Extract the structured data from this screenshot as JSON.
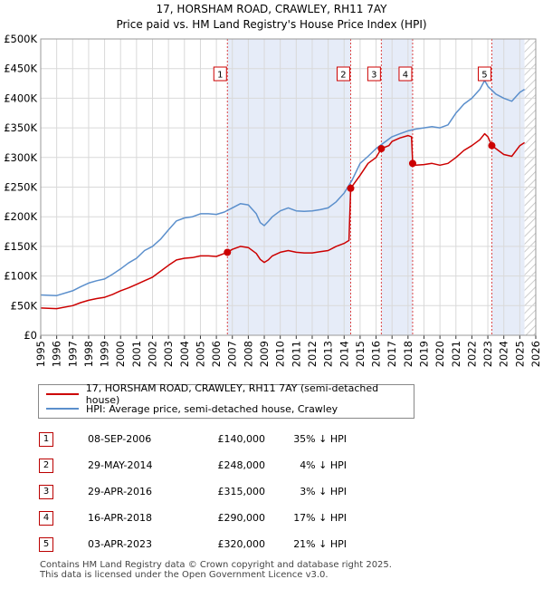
{
  "title_line1": "17, HORSHAM ROAD, CRAWLEY, RH11 7AY",
  "title_line2": "Price paid vs. HM Land Registry's House Price Index (HPI)",
  "legend": {
    "red": "17, HORSHAM ROAD, CRAWLEY, RH11 7AY (semi-detached house)",
    "blue": "HPI: Average price, semi-detached house, Crawley"
  },
  "colors": {
    "red": "#cc0000",
    "blue": "#5b8fcc",
    "shade": "#dde6f5",
    "grid": "#d9d9d9"
  },
  "sales": [
    {
      "num": "1",
      "date": "08-SEP-2006",
      "price": "£140,000",
      "hpi": "35% ↓ HPI"
    },
    {
      "num": "2",
      "date": "29-MAY-2014",
      "price": "£248,000",
      "hpi": "4% ↓ HPI"
    },
    {
      "num": "3",
      "date": "29-APR-2016",
      "price": "£315,000",
      "hpi": "3% ↓ HPI"
    },
    {
      "num": "4",
      "date": "16-APR-2018",
      "price": "£290,000",
      "hpi": "17% ↓ HPI"
    },
    {
      "num": "5",
      "date": "03-APR-2023",
      "price": "£320,000",
      "hpi": "21% ↓ HPI"
    }
  ],
  "footer_line1": "Contains HM Land Registry data © Crown copyright and database right 2025.",
  "footer_line2": "This data is licensed under the Open Government Licence v3.0.",
  "chart_data": {
    "type": "line",
    "xlim": [
      1995,
      2026
    ],
    "ylim": [
      0,
      500000
    ],
    "x_ticks": [
      "1995",
      "1996",
      "1997",
      "1998",
      "1999",
      "2000",
      "2001",
      "2002",
      "2003",
      "2004",
      "2005",
      "2006",
      "2007",
      "2008",
      "2009",
      "2010",
      "2011",
      "2012",
      "2013",
      "2014",
      "2015",
      "2016",
      "2017",
      "2018",
      "2019",
      "2020",
      "2021",
      "2022",
      "2023",
      "2024",
      "2025",
      "2026"
    ],
    "y_ticks": [
      {
        "v": 0,
        "label": "£0"
      },
      {
        "v": 50000,
        "label": "£50K"
      },
      {
        "v": 100000,
        "label": "£100K"
      },
      {
        "v": 150000,
        "label": "£150K"
      },
      {
        "v": 200000,
        "label": "£200K"
      },
      {
        "v": 250000,
        "label": "£250K"
      },
      {
        "v": 300000,
        "label": "£300K"
      },
      {
        "v": 350000,
        "label": "£350K"
      },
      {
        "v": 400000,
        "label": "£400K"
      },
      {
        "v": 450000,
        "label": "£450K"
      },
      {
        "v": 500000,
        "label": "£500K"
      }
    ],
    "hatch_from": 2025.3,
    "shaded_spans": [
      [
        2006.69,
        2014.41
      ],
      [
        2016.33,
        2018.29
      ],
      [
        2023.25,
        2025.3
      ]
    ],
    "series": [
      {
        "name": "HPI: Average price, semi-detached house, Crawley",
        "x": [
          1995.0,
          1996.0,
          1997.0,
          1997.5,
          1998.0,
          1998.5,
          1999.0,
          1999.5,
          2000.0,
          2000.5,
          2001.0,
          2001.5,
          2002.0,
          2002.5,
          2003.0,
          2003.5,
          2004.0,
          2004.5,
          2005.0,
          2005.5,
          2006.0,
          2006.5,
          2007.0,
          2007.5,
          2008.0,
          2008.5,
          2008.75,
          2009.0,
          2009.25,
          2009.5,
          2010.0,
          2010.5,
          2011.0,
          2011.5,
          2012.0,
          2012.5,
          2013.0,
          2013.5,
          2014.0,
          2014.5,
          2015.0,
          2015.5,
          2016.0,
          2016.5,
          2017.0,
          2017.5,
          2018.0,
          2018.5,
          2019.0,
          2019.5,
          2020.0,
          2020.5,
          2021.0,
          2021.5,
          2022.0,
          2022.5,
          2022.8,
          2023.0,
          2023.5,
          2024.0,
          2024.5,
          2025.0,
          2025.3
        ],
        "y": [
          68000,
          67000,
          75000,
          82000,
          88000,
          92000,
          95000,
          103000,
          112000,
          122000,
          130000,
          143000,
          150000,
          162000,
          178000,
          193000,
          198000,
          200000,
          205000,
          205000,
          204000,
          208000,
          215000,
          222000,
          220000,
          205000,
          190000,
          185000,
          192000,
          200000,
          210000,
          215000,
          210000,
          209000,
          210000,
          212000,
          215000,
          225000,
          240000,
          262000,
          290000,
          302000,
          315000,
          325000,
          335000,
          340000,
          345000,
          348000,
          350000,
          352000,
          350000,
          355000,
          375000,
          390000,
          400000,
          415000,
          430000,
          420000,
          407000,
          400000,
          395000,
          410000,
          415000
        ]
      },
      {
        "name": "17, HORSHAM ROAD, CRAWLEY, RH11 7AY (semi-detached house)",
        "x": [
          1995.0,
          1996.0,
          1997.0,
          1997.5,
          1998.0,
          1998.5,
          1999.0,
          1999.5,
          2000.0,
          2000.5,
          2001.0,
          2001.5,
          2002.0,
          2002.5,
          2003.0,
          2003.5,
          2004.0,
          2004.5,
          2005.0,
          2005.5,
          2006.0,
          2006.69,
          2007.0,
          2007.5,
          2008.0,
          2008.5,
          2008.75,
          2009.0,
          2009.25,
          2009.5,
          2010.0,
          2010.5,
          2011.0,
          2011.5,
          2012.0,
          2012.5,
          2013.0,
          2013.5,
          2014.0,
          2014.3,
          2014.41,
          2015.0,
          2015.5,
          2016.0,
          2016.33,
          2016.8,
          2017.0,
          2017.5,
          2018.0,
          2018.22,
          2018.29,
          2018.5,
          2019.0,
          2019.5,
          2020.0,
          2020.5,
          2021.0,
          2021.5,
          2022.0,
          2022.5,
          2022.8,
          2023.0,
          2023.25,
          2023.5,
          2024.0,
          2024.5,
          2025.0,
          2025.3
        ],
        "y": [
          46000,
          45000,
          50000,
          55000,
          59000,
          62000,
          64000,
          69000,
          75000,
          80000,
          86000,
          92000,
          98000,
          108000,
          118000,
          127000,
          130000,
          131000,
          134000,
          134000,
          133000,
          140000,
          145000,
          150000,
          148000,
          138000,
          128000,
          123000,
          127000,
          134000,
          140000,
          143000,
          140000,
          139000,
          139000,
          141000,
          143000,
          150000,
          155000,
          160000,
          248000,
          270000,
          290000,
          300000,
          315000,
          320000,
          327000,
          333000,
          337000,
          335000,
          290000,
          287000,
          288000,
          290000,
          287000,
          290000,
          300000,
          312000,
          320000,
          330000,
          340000,
          335000,
          320000,
          315000,
          305000,
          302000,
          320000,
          325000
        ]
      }
    ],
    "sales": [
      {
        "num": "1",
        "x": 2006.69,
        "y": 140000
      },
      {
        "num": "2",
        "x": 2014.41,
        "y": 248000
      },
      {
        "num": "3",
        "x": 2016.33,
        "y": 315000
      },
      {
        "num": "4",
        "x": 2018.29,
        "y": 290000
      },
      {
        "num": "5",
        "x": 2023.25,
        "y": 320000
      }
    ]
  }
}
